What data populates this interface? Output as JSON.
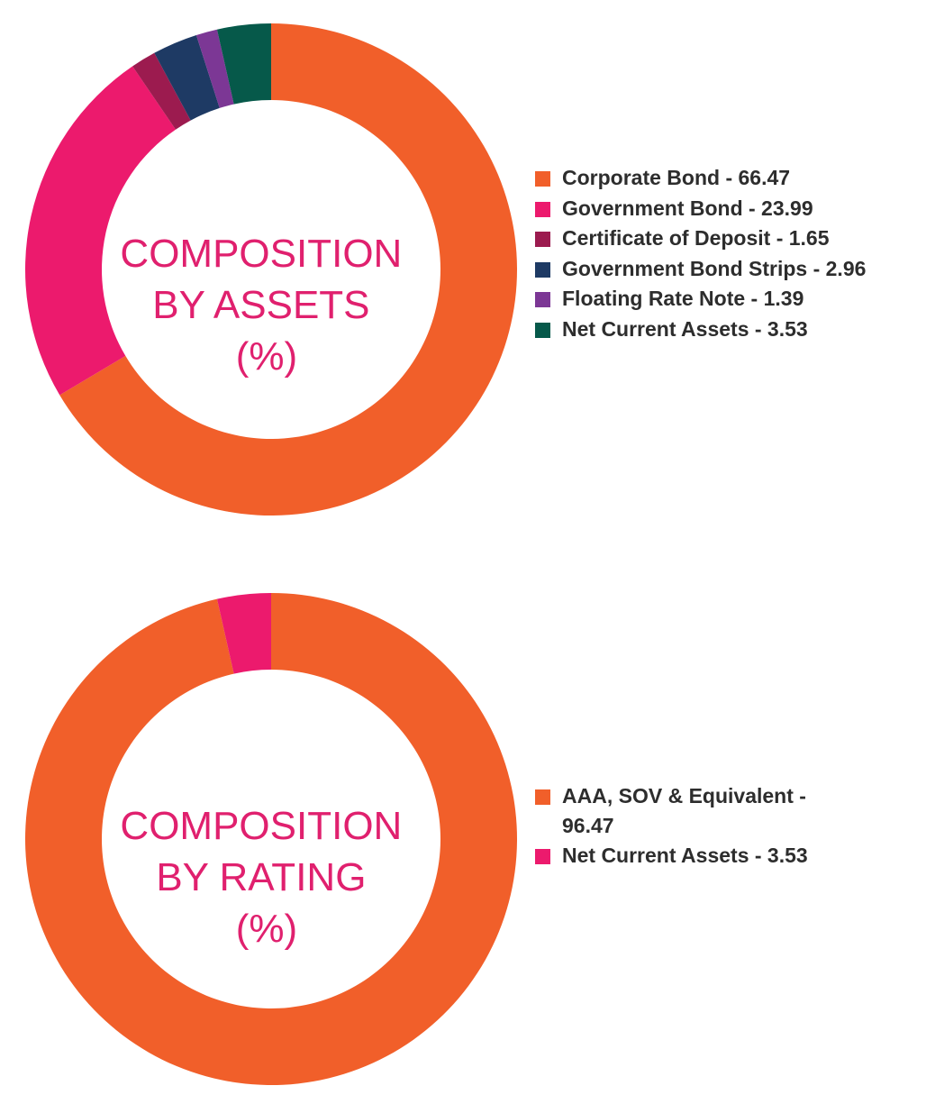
{
  "chart_data": [
    {
      "type": "pie",
      "variant": "donut",
      "title_lines": [
        "COMPOSITION",
        "BY ASSETS",
        "(%)"
      ],
      "title_color": "#e0206e",
      "legend_position": "right",
      "series": [
        {
          "name": "Corporate Bond",
          "value": 66.47,
          "color": "#f15f2a",
          "label": "Corporate Bond - 66.47"
        },
        {
          "name": "Government Bond",
          "value": 23.99,
          "color": "#ec1a6d",
          "label": "Government Bond - 23.99"
        },
        {
          "name": "Certificate of Deposit",
          "value": 1.65,
          "color": "#9c1b4f",
          "label": "Certificate of Deposit - 1.65"
        },
        {
          "name": "Government Bond Strips",
          "value": 2.96,
          "color": "#1e3a64",
          "label": "Government Bond Strips - 2.96"
        },
        {
          "name": "Floating Rate Note",
          "value": 1.39,
          "color": "#7c3795",
          "label": "Floating Rate Note - 1.39"
        },
        {
          "name": "Net Current Assets",
          "value": 3.53,
          "color": "#06594a",
          "label": "Net Current Assets - 3.53"
        }
      ]
    },
    {
      "type": "pie",
      "variant": "donut",
      "title_lines": [
        "COMPOSITION",
        "BY RATING",
        "(%)"
      ],
      "title_color": "#e0206e",
      "legend_position": "right",
      "series": [
        {
          "name": "AAA, SOV & Equivalent",
          "value": 96.47,
          "color": "#f15f2a",
          "label": "AAA, SOV & Equivalent - 96.47",
          "label_lines": [
            "AAA, SOV & Equivalent -",
            "96.47"
          ]
        },
        {
          "name": "Net Current Assets",
          "value": 3.53,
          "color": "#ec1a6d",
          "label": "Net Current Assets - 3.53"
        }
      ]
    }
  ]
}
